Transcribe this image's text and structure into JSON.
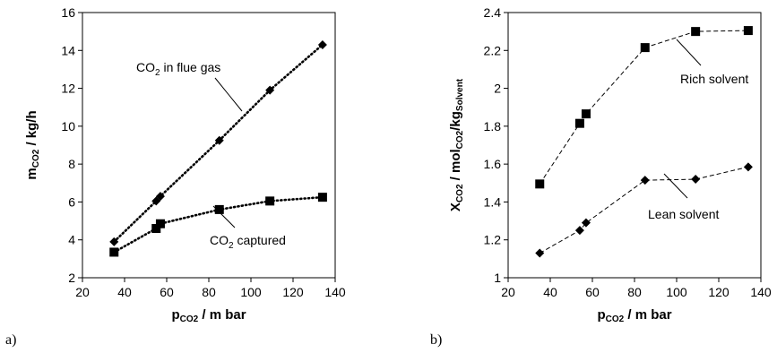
{
  "chart_data": [
    {
      "type": "line",
      "panel_label": "a)",
      "xlabel": {
        "main": "p",
        "sub": "CO2",
        "tail": " / m bar"
      },
      "ylabel": {
        "main": "m",
        "sub": "CO2",
        "tail": " / kg/h"
      },
      "xlim": [
        20,
        140
      ],
      "ylim": [
        2,
        16
      ],
      "xticks": [
        "20",
        "40",
        "60",
        "80",
        "100",
        "120",
        "140"
      ],
      "yticks": [
        "2",
        "4",
        "6",
        "8",
        "10",
        "12",
        "14",
        "16"
      ],
      "grid": false,
      "series": [
        {
          "marker": "diamond",
          "line": "dotted",
          "x": [
            35,
            55,
            57,
            85,
            109,
            134
          ],
          "y": [
            3.9,
            6.05,
            6.3,
            9.25,
            11.9,
            14.3
          ]
        },
        {
          "marker": "square",
          "line": "dotted",
          "x": [
            35,
            55,
            57,
            85,
            109,
            134
          ],
          "y": [
            3.35,
            4.6,
            4.85,
            5.6,
            6.05,
            6.25
          ]
        }
      ],
      "annotations": [
        {
          "text_main": "CO",
          "text_sub": "2",
          "text_tail": " in flue gas"
        },
        {
          "text_main": "CO",
          "text_sub": "2",
          "text_tail": " captured"
        }
      ]
    },
    {
      "type": "line",
      "panel_label": "b)",
      "xlabel": {
        "main": "p",
        "sub": "CO2",
        "tail": " / m bar"
      },
      "ylabel": {
        "main": "X",
        "sub": "CO2",
        "mid": " / mol",
        "sub2": "CO2",
        "mid2": "/kg",
        "sub3": "Solvent"
      },
      "xlim": [
        20,
        140
      ],
      "ylim": [
        1,
        2.4
      ],
      "xticks": [
        "20",
        "40",
        "60",
        "80",
        "100",
        "120",
        "140"
      ],
      "yticks": [
        "1",
        "1.2",
        "1.4",
        "1.6",
        "1.8",
        "2",
        "2.2",
        "2.4"
      ],
      "grid": false,
      "series": [
        {
          "marker": "square",
          "line": "dashed",
          "x": [
            35,
            54,
            57,
            85,
            109,
            134
          ],
          "y": [
            1.495,
            1.815,
            1.865,
            2.215,
            2.3,
            2.305
          ]
        },
        {
          "marker": "diamond",
          "line": "dashed",
          "x": [
            35,
            54,
            57,
            85,
            109,
            134
          ],
          "y": [
            1.13,
            1.25,
            1.29,
            1.515,
            1.52,
            1.585
          ]
        }
      ],
      "annotations": [
        {
          "text": "Rich solvent"
        },
        {
          "text": "Lean solvent"
        }
      ]
    }
  ]
}
